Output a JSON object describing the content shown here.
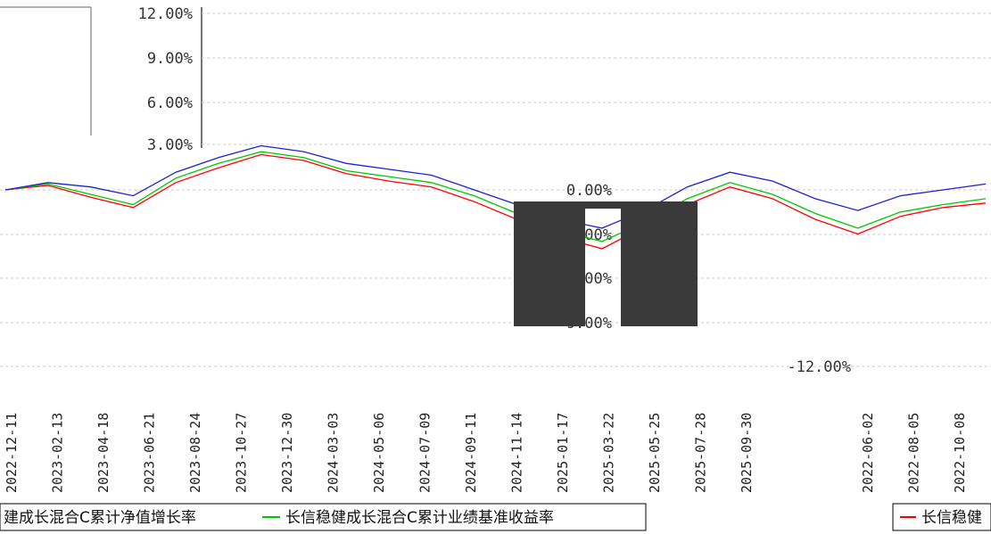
{
  "chart_data": {
    "type": "line",
    "title": "",
    "xlabel": "",
    "ylabel": "",
    "ylim": [
      -12,
      12
    ],
    "y_ticks": [
      "12.00%",
      "9.00%",
      "6.00%",
      "3.00%",
      "0.00%",
      "-3.00%",
      "-6.00%",
      "-9.00%",
      "-12.00%"
    ],
    "x_ticks": [
      "2022-12-11",
      "2023-02-13",
      "2023-04-18",
      "2023-06-21",
      "2023-08-24",
      "2023-10-27",
      "2023-12-30",
      "2024-03-03",
      "2024-05-06",
      "2024-07-09",
      "2024-09-11",
      "2024-11-14",
      "2025-01-17",
      "2025-03-22",
      "2025-05-25",
      "2025-07-28",
      "2025-09-30"
    ],
    "x_ticks_right": [
      "2022-06-02",
      "2022-08-05",
      "2022-10-08"
    ],
    "grid": true,
    "legend_position": "bottom",
    "series": [
      {
        "name": "长信稳健成长混合C累计净值增长率",
        "color": "#ff0000",
        "values": [
          0.0,
          0.3,
          -0.5,
          -1.2,
          0.5,
          1.5,
          2.4,
          2.0,
          1.1,
          0.6,
          0.2,
          -0.8,
          -2.0,
          -3.2,
          -4.0,
          -2.5,
          -1.0,
          0.2,
          -0.6,
          -2.0,
          -3.0,
          -1.8,
          -1.2,
          -0.9
        ]
      },
      {
        "name": "长信稳健成长混合C累计业绩基准收益率",
        "color": "#00c800",
        "values": [
          0.0,
          0.4,
          -0.3,
          -1.0,
          0.8,
          1.8,
          2.6,
          2.2,
          1.3,
          0.9,
          0.5,
          -0.4,
          -1.6,
          -2.8,
          -3.5,
          -2.2,
          -0.6,
          0.5,
          -0.3,
          -1.6,
          -2.6,
          -1.5,
          -1.0,
          -0.6
        ]
      },
      {
        "name": "",
        "color": "#2020d0",
        "values": [
          0.0,
          0.5,
          0.2,
          -0.4,
          1.2,
          2.2,
          3.0,
          2.6,
          1.8,
          1.4,
          1.0,
          0.0,
          -1.0,
          -2.0,
          -2.6,
          -1.4,
          0.2,
          1.2,
          0.6,
          -0.6,
          -1.4,
          -0.4,
          0.0,
          0.4
        ]
      }
    ],
    "legend": {
      "left_text": "建成长混合C累计净值增长率",
      "middle_text": "长信稳健成长混合C累计业绩基准收益率",
      "right_text": "长信稳健"
    }
  }
}
